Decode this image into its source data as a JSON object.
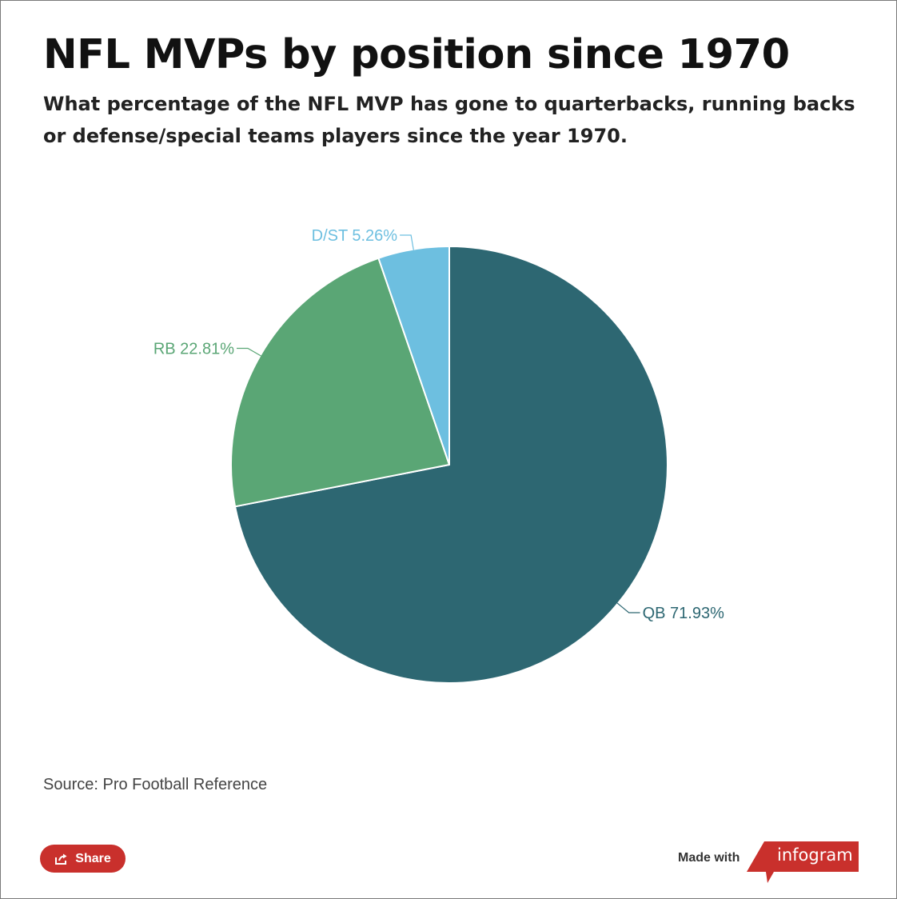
{
  "header": {
    "title": "NFL MVPs by position since 1970",
    "subtitle": "What percentage of the NFL MVP has gone to quarterbacks, running backs or defense/special teams players since the year 1970."
  },
  "chart_data": {
    "type": "pie",
    "slices": [
      {
        "label": "QB 71.93%",
        "category": "QB",
        "value": 71.93,
        "color": "#2d6772"
      },
      {
        "label": "RB 22.81%",
        "category": "RB",
        "value": 22.81,
        "color": "#5aa675"
      },
      {
        "label": "D/ST 5.26%",
        "category": "D/ST",
        "value": 5.26,
        "color": "#6dbfe0"
      }
    ],
    "start_direction": "12 o'clock",
    "direction": "clockwise"
  },
  "footer": {
    "source": "Source: Pro Football Reference",
    "share_label": "Share",
    "made_with": "Made with",
    "brand": "infogram",
    "share_color": "#c9302c",
    "brand_color": "#c9302c"
  }
}
